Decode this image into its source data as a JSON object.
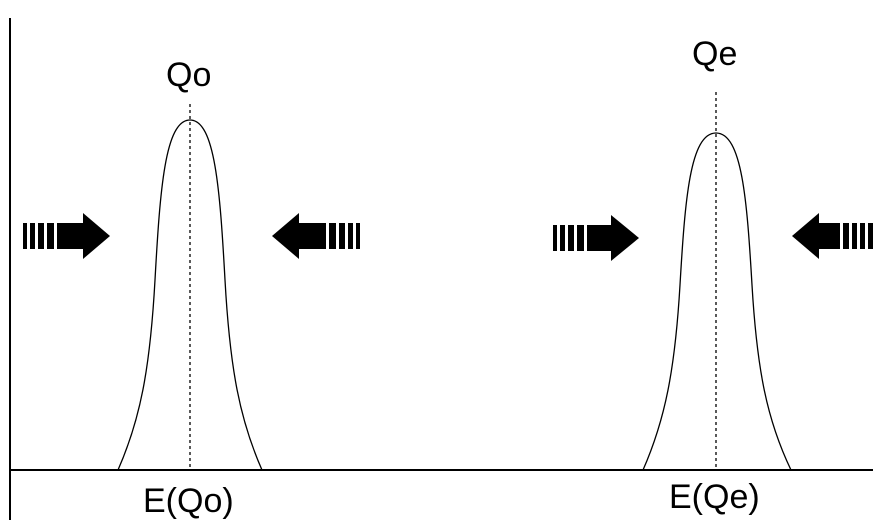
{
  "labels": {
    "left_peak_top": "Qo",
    "right_peak_top": "Qe",
    "left_peak_bottom": "E(Qo)",
    "right_peak_bottom": "E(Qe)"
  },
  "colors": {
    "stroke": "#000000",
    "background": "#ffffff"
  },
  "icons": {
    "left_group": [
      "arrow-right-icon",
      "arrow-left-icon"
    ],
    "right_group": [
      "arrow-right-icon",
      "arrow-left-icon"
    ]
  }
}
